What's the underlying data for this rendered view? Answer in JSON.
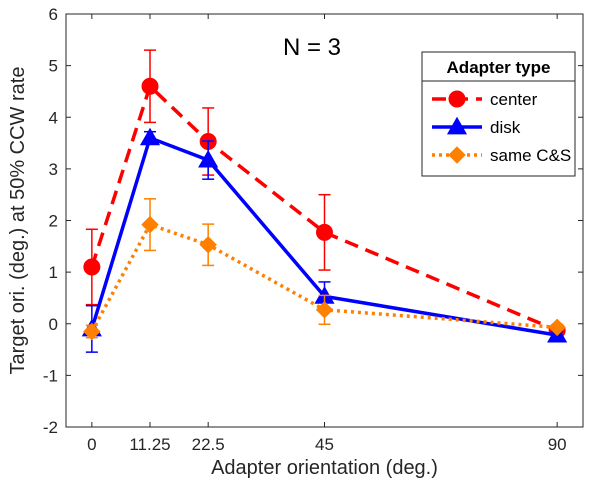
{
  "chart_data": {
    "type": "line",
    "annotation": "N = 3",
    "xlabel": "Adapter orientation (deg.)",
    "ylabel": "Target ori. (deg.) at 50% CCW rate",
    "xlim": [
      -5,
      95
    ],
    "ylim": [
      -2,
      6
    ],
    "x_ticks": [
      0,
      11.25,
      22.5,
      45,
      90
    ],
    "x_tick_labels": [
      "0",
      "11.25",
      "22.5",
      "45",
      "90"
    ],
    "y_ticks": [
      -2,
      -1,
      0,
      1,
      2,
      3,
      4,
      5,
      6
    ],
    "y_tick_labels": [
      "-2",
      "-1",
      "0",
      "1",
      "2",
      "3",
      "4",
      "5",
      "6"
    ],
    "x": [
      0,
      11.25,
      22.5,
      45,
      90
    ],
    "grid": false,
    "legend": {
      "title": "Adapter type",
      "placement": "top-right"
    },
    "series": [
      {
        "name": "center",
        "color": "#ff0000",
        "line_style": "dashed",
        "marker": "circle",
        "values": [
          1.1,
          4.6,
          3.53,
          1.77,
          -0.13
        ],
        "errors": [
          0.73,
          0.7,
          0.65,
          0.73,
          0.05
        ]
      },
      {
        "name": "disk",
        "color": "#0000ff",
        "line_style": "solid",
        "marker": "triangle",
        "values": [
          -0.1,
          3.6,
          3.17,
          0.53,
          -0.22
        ],
        "errors": [
          0.45,
          0.12,
          0.37,
          0.28,
          0.07
        ]
      },
      {
        "name": "same C&S",
        "color": "#ff8000",
        "line_style": "dotted",
        "marker": "diamond",
        "values": [
          -0.15,
          1.92,
          1.53,
          0.27,
          -0.07
        ],
        "errors": [
          0.12,
          0.5,
          0.4,
          0.28,
          0.05
        ]
      }
    ]
  }
}
